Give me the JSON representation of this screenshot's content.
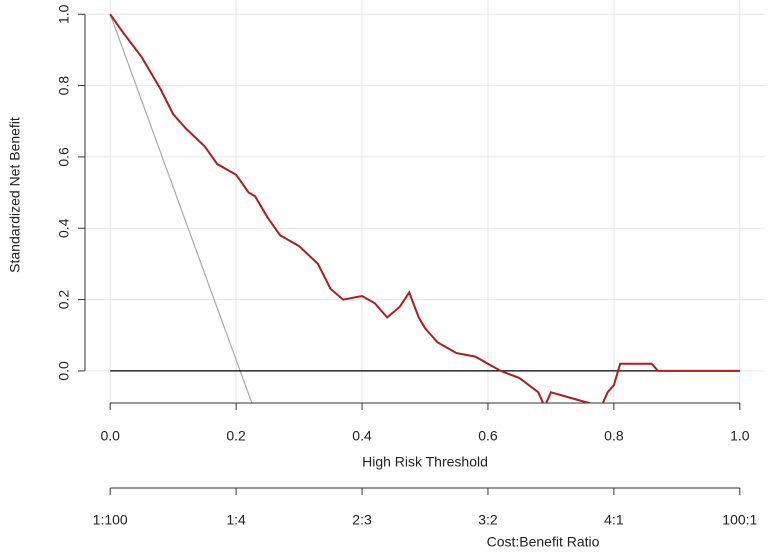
{
  "chart_data": {
    "type": "line",
    "xlabel": "High Risk Threshold",
    "ylabel": "Standardized Net Benefit",
    "xlim": [
      -0.04,
      1.04
    ],
    "ylim": [
      -0.09,
      1.04
    ],
    "xticks": [
      {
        "value": 0,
        "label": "0.0"
      },
      0.2,
      0.4,
      0.6,
      0.8,
      {
        "value": 1,
        "label": "1.0"
      }
    ],
    "yticks": [
      {
        "value": 0,
        "label": "0.0"
      },
      0.2,
      0.4,
      0.6,
      0.8,
      {
        "value": 1,
        "label": "1.0"
      }
    ],
    "x2label": "Cost:Benefit Ratio",
    "x2ticks": [
      {
        "value": 0,
        "label": "1:100"
      },
      {
        "value": 0.2,
        "label": "1:4"
      },
      {
        "value": 0.4,
        "label": "2:3"
      },
      {
        "value": 0.6,
        "label": "3:2"
      },
      {
        "value": 0.8,
        "label": "4:1"
      },
      {
        "value": 1,
        "label": "100:1"
      }
    ],
    "grid": true,
    "series": [
      {
        "color": "#aaaaaa",
        "x": [
          0,
          0.225
        ],
        "values": [
          1.0,
          -0.09
        ]
      },
      {
        "color": "#000000",
        "x": [
          0,
          1
        ],
        "values": [
          0,
          0
        ]
      },
      {
        "color": "#b01c1c",
        "x": [
          0,
          0.02,
          0.05,
          0.08,
          0.1,
          0.12,
          0.15,
          0.17,
          0.2,
          0.22,
          0.23,
          0.25,
          0.27,
          0.3,
          0.33,
          0.35,
          0.37,
          0.4,
          0.42,
          0.44,
          0.46,
          0.475,
          0.49,
          0.5,
          0.52,
          0.55,
          0.58,
          0.6,
          0.62,
          0.65,
          0.68,
          0.69,
          0.7,
          0.72,
          0.76,
          0.78,
          0.79,
          0.8,
          0.81,
          0.86,
          0.87,
          1.0
        ],
        "values": [
          1.0,
          0.95,
          0.88,
          0.79,
          0.72,
          0.68,
          0.63,
          0.58,
          0.55,
          0.5,
          0.49,
          0.43,
          0.38,
          0.35,
          0.3,
          0.23,
          0.2,
          0.21,
          0.19,
          0.15,
          0.18,
          0.22,
          0.15,
          0.12,
          0.08,
          0.05,
          0.04,
          0.02,
          0.0,
          -0.02,
          -0.06,
          -0.1,
          -0.06,
          -0.07,
          -0.09,
          -0.1,
          -0.06,
          -0.04,
          0.02,
          0.02,
          0.0,
          0.0
        ]
      }
    ]
  }
}
